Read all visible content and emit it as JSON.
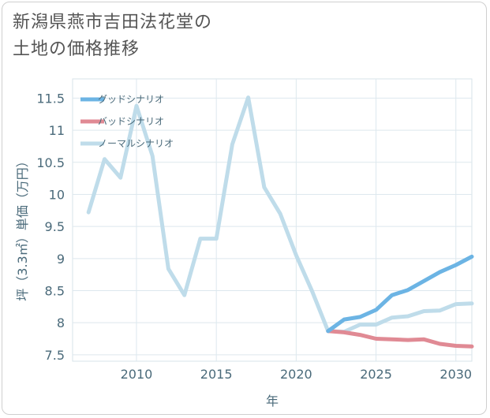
{
  "title_line1": "新潟県燕市吉田法花堂の",
  "title_line2": "土地の価格推移",
  "chart_data": {
    "type": "line",
    "title": "新潟県燕市吉田法花堂の土地の価格推移",
    "xlabel": "年",
    "ylabel": "坪（3.3㎡）単価（万円）",
    "xlim": [
      2006,
      2031
    ],
    "ylim": [
      7.4,
      11.8
    ],
    "xticks": [
      2010,
      2015,
      2020,
      2025,
      2030
    ],
    "yticks": [
      7.5,
      8,
      8.5,
      9,
      9.5,
      10,
      10.5,
      11,
      11.5
    ],
    "grid": true,
    "legend_position": "top-left",
    "series": [
      {
        "name": "グッドシナリオ",
        "color": "#6cb4e4",
        "x": [
          2022,
          2023,
          2024,
          2025,
          2026,
          2027,
          2028,
          2029,
          2030,
          2031
        ],
        "values": [
          7.87,
          8.05,
          8.09,
          8.2,
          8.43,
          8.51,
          8.65,
          8.79,
          8.9,
          9.03
        ]
      },
      {
        "name": "バッドシナリオ",
        "color": "#e08a94",
        "x": [
          2022,
          2023,
          2024,
          2025,
          2026,
          2027,
          2028,
          2029,
          2030,
          2031
        ],
        "values": [
          7.87,
          7.85,
          7.81,
          7.75,
          7.74,
          7.73,
          7.74,
          7.67,
          7.64,
          7.63
        ]
      },
      {
        "name": "ノーマルシナリオ",
        "color": "#bfdcea",
        "x": [
          2007,
          2008,
          2009,
          2010,
          2011,
          2012,
          2013,
          2014,
          2015,
          2016,
          2017,
          2018,
          2019,
          2020,
          2021,
          2022,
          2023,
          2024,
          2025,
          2026,
          2027,
          2028,
          2029,
          2030,
          2031
        ],
        "values": [
          9.72,
          10.55,
          10.26,
          11.38,
          10.6,
          8.84,
          8.43,
          9.31,
          9.31,
          10.78,
          11.51,
          10.11,
          9.7,
          9.05,
          8.49,
          7.87,
          7.86,
          7.97,
          7.97,
          8.08,
          8.1,
          8.18,
          8.19,
          8.29,
          8.3
        ]
      }
    ]
  }
}
